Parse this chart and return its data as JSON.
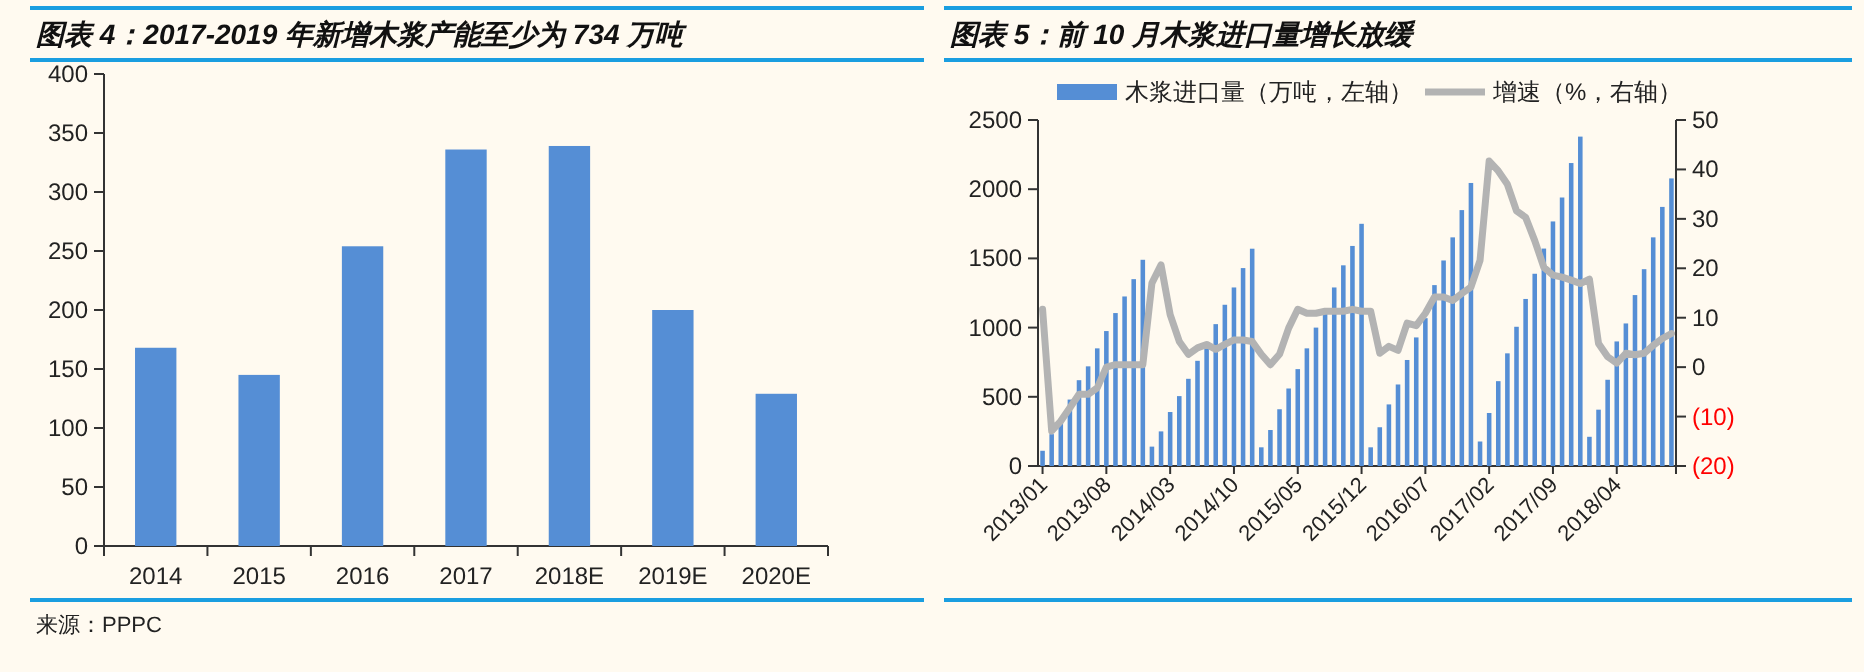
{
  "chart_data": [
    {
      "type": "bar",
      "title": "图表 4：2017-2019 年新增木浆产能至少为 734 万吨",
      "categories": [
        "2014",
        "2015",
        "2016",
        "2017",
        "2018E",
        "2019E",
        "2020E"
      ],
      "series": [
        {
          "color": "#558ed5",
          "values": [
            168,
            145,
            254,
            336,
            339,
            200,
            129
          ]
        }
      ],
      "ylim": [
        0,
        400
      ],
      "yticks": [
        0,
        50,
        100,
        150,
        200,
        250,
        300,
        350,
        400
      ],
      "annotations": [
        "来源：PPPC"
      ]
    },
    {
      "type": "bar",
      "title": "图表 5：前 10 月木浆进口量增长放缓",
      "categories": [
        "2013/01",
        null,
        null,
        null,
        null,
        null,
        null,
        "2013/08",
        null,
        null,
        null,
        null,
        null,
        null,
        "2014/03",
        null,
        null,
        null,
        null,
        null,
        null,
        "2014/10",
        null,
        null,
        null,
        null,
        null,
        null,
        "2015/05",
        null,
        null,
        null,
        null,
        null,
        null,
        "2015/12",
        null,
        null,
        null,
        null,
        null,
        null,
        "2016/07",
        null,
        null,
        null,
        null,
        null,
        null,
        "2017/02",
        null,
        null,
        null,
        null,
        null,
        null,
        "2017/09",
        null,
        null,
        null,
        null,
        null,
        null,
        "2018/04",
        null,
        null,
        null,
        null,
        null,
        null
      ],
      "series": [
        {
          "name": "木浆进口量（万吨，左轴）",
          "color": "#558ed5",
          "values": [
            110,
            230,
            340,
            480,
            620,
            720,
            850,
            975,
            1105,
            1225,
            1350,
            1490,
            140,
            250,
            390,
            505,
            630,
            760,
            870,
            1025,
            1165,
            1290,
            1430,
            1570,
            135,
            260,
            410,
            560,
            700,
            850,
            1000,
            1130,
            1290,
            1450,
            1590,
            1750,
            135,
            280,
            445,
            589,
            766,
            929,
            1068,
            1307,
            1485,
            1652,
            1849,
            2045,
            177,
            383,
            613,
            814,
            1006,
            1207,
            1389,
            1571,
            1767,
            1940,
            2189,
            2380,
            211,
            407,
            623,
            900,
            1030,
            1235,
            1422,
            1652,
            1872,
            2078
          ]
        },
        {
          "name": "增速（%，右轴）",
          "type": "line",
          "axis": "y2",
          "color": "#b3b3b3",
          "values": [
            11.7,
            -12.9,
            -10.9,
            -8.2,
            -5.5,
            -5.5,
            -4.2,
            0,
            0.5,
            0.5,
            0.5,
            0.5,
            17,
            20.7,
            10.6,
            5.2,
            2.6,
            3.9,
            4.6,
            3.6,
            4.6,
            5.5,
            5.5,
            5.2,
            2.6,
            0.5,
            2.6,
            7.9,
            11.7,
            10.9,
            10.9,
            11.3,
            11.3,
            11.3,
            11.7,
            11.3,
            11.3,
            2.8,
            4.2,
            3.4,
            8.9,
            8.4,
            10.9,
            14.2,
            14.2,
            13.5,
            14.9,
            16.2,
            21.6,
            41.7,
            39.7,
            37,
            31.6,
            30.3,
            25.6,
            20.2,
            18.6,
            18.2,
            17.6,
            16.9,
            17.8,
            4.8,
            2.1,
            0.8,
            2.8,
            2.5,
            2.8,
            4.4,
            5.8,
            6.8
          ]
        }
      ],
      "ylim": [
        0,
        2500
      ],
      "yticks": [
        0,
        500,
        1000,
        1500,
        2000,
        2500
      ],
      "y2lim": [
        -20,
        50
      ],
      "y2ticks": [
        {
          "value": -20,
          "label": "(20)"
        },
        {
          "value": -10,
          "label": "(10)"
        },
        0,
        10,
        20,
        30,
        40,
        50
      ],
      "legend": "top"
    }
  ]
}
